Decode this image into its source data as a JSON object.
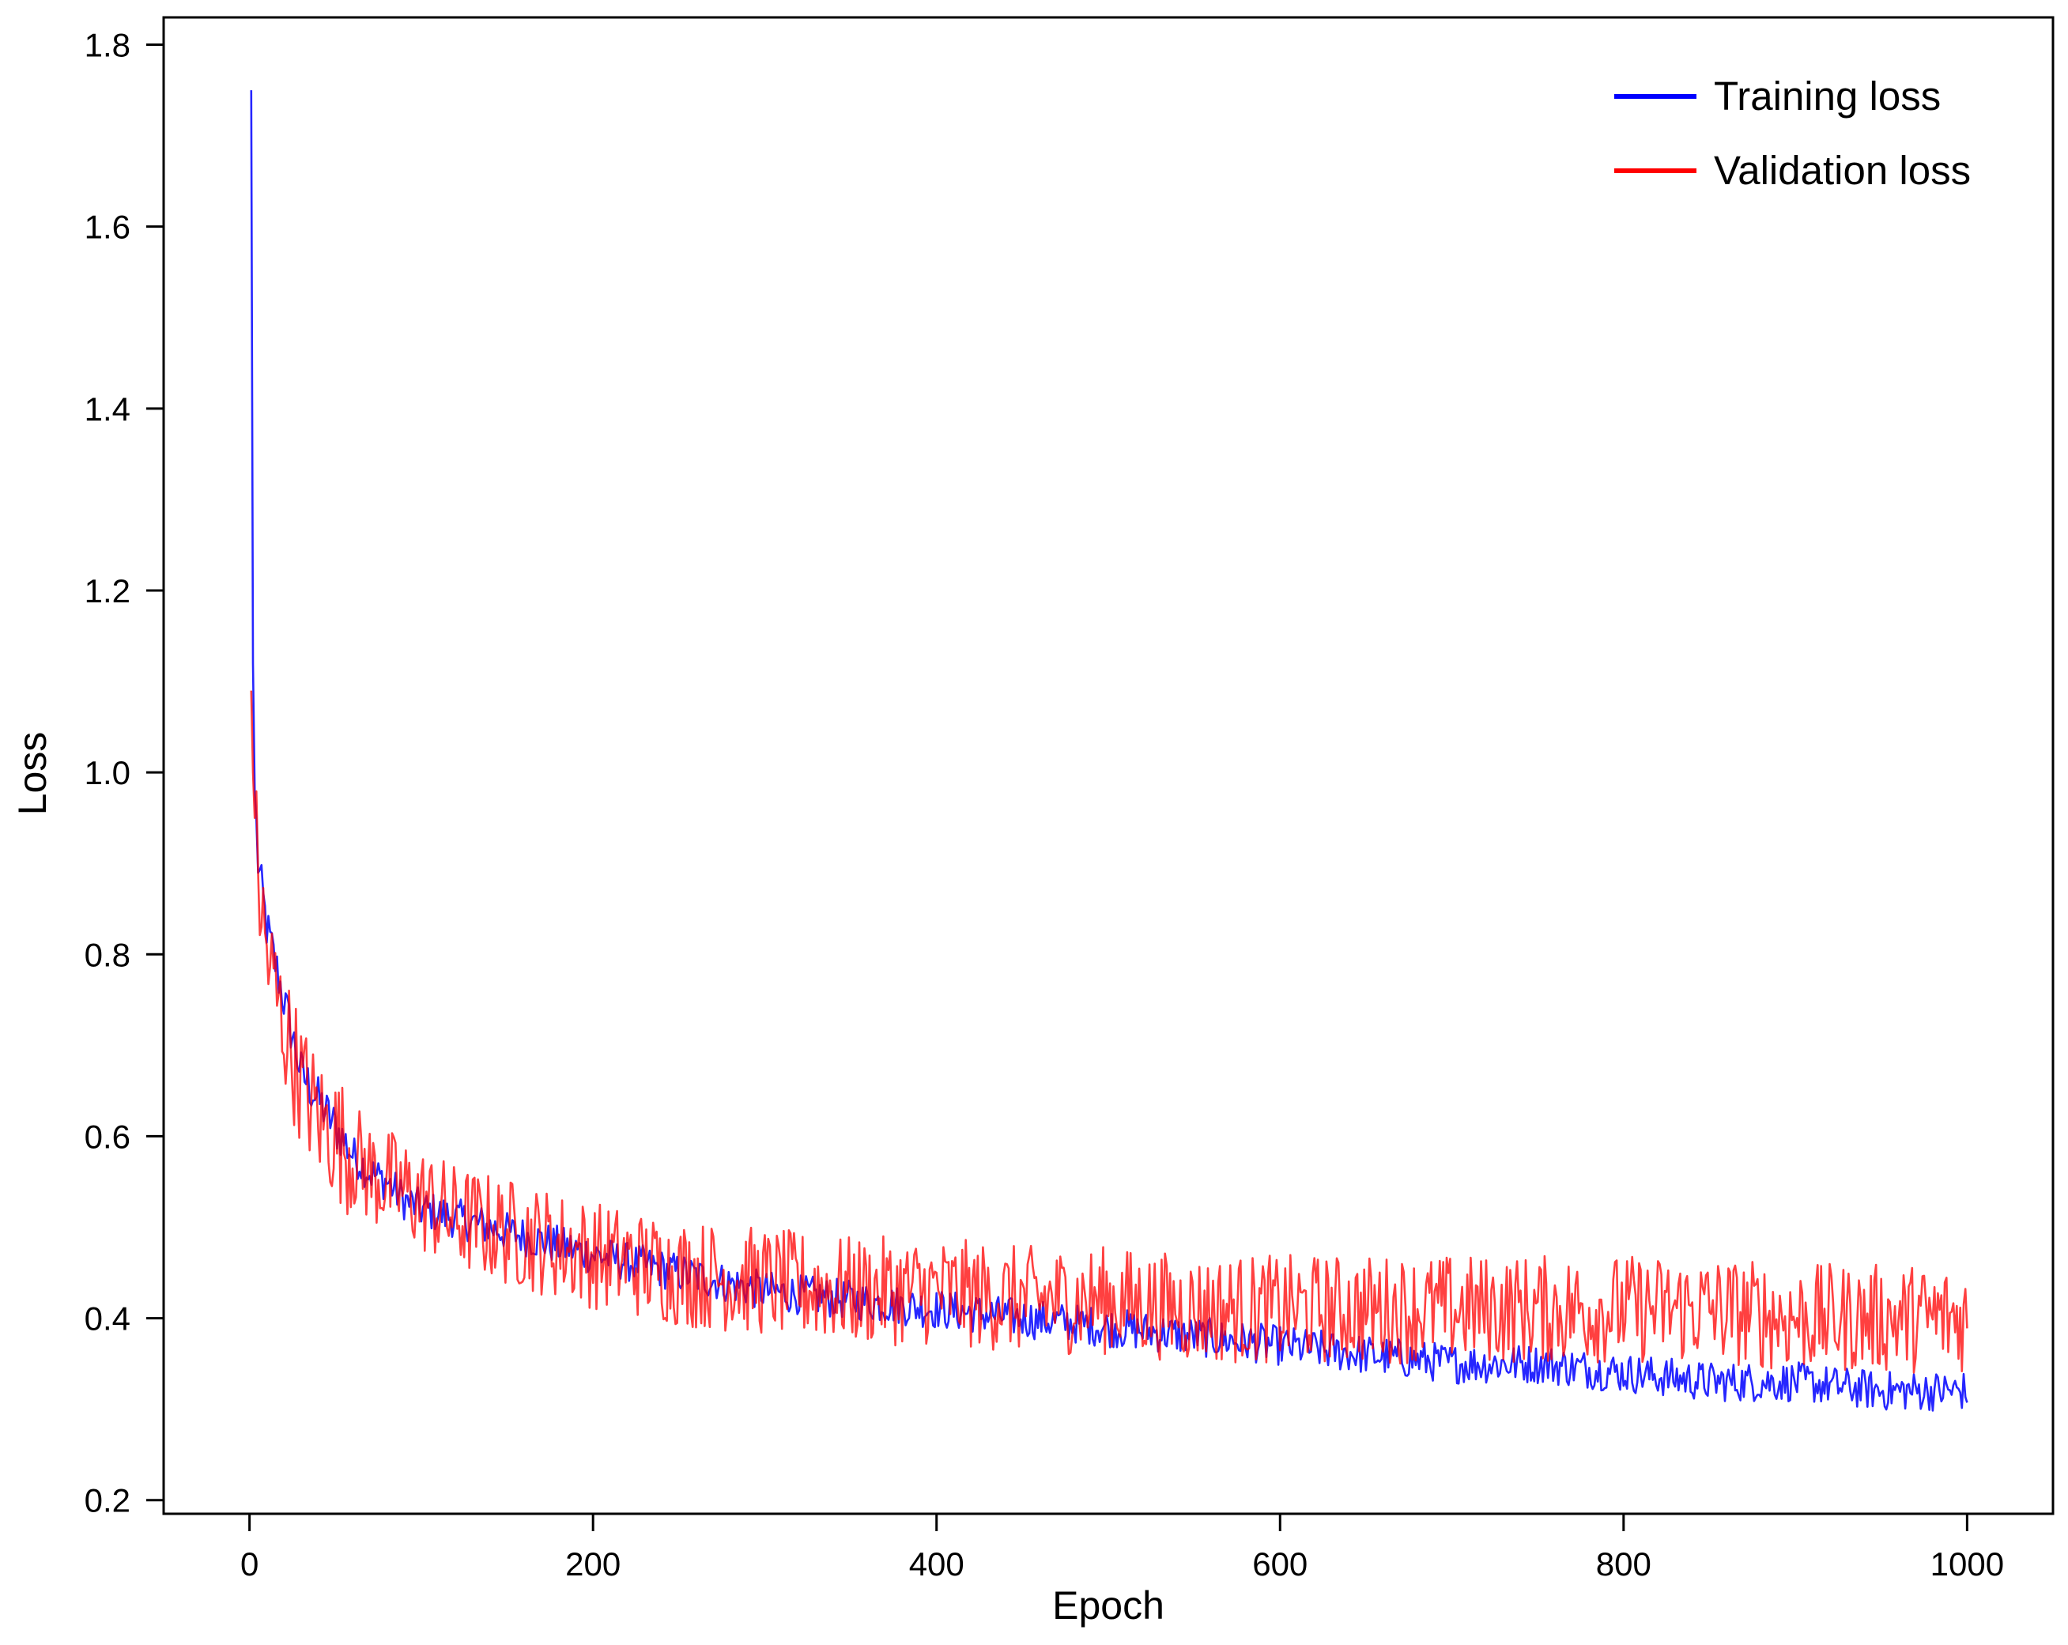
{
  "chart_data": {
    "type": "line",
    "title": "",
    "xlabel": "Epoch",
    "ylabel": "Loss",
    "xlim": [
      -50,
      1050
    ],
    "ylim": [
      0.185,
      1.83
    ],
    "x_ticks": [
      0,
      200,
      400,
      600,
      800,
      1000
    ],
    "x_tick_labels": [
      "0",
      "200",
      "400",
      "600",
      "800",
      "1000"
    ],
    "y_ticks": [
      0.2,
      0.4,
      0.6,
      0.8,
      1.0,
      1.2,
      1.4,
      1.6,
      1.8
    ],
    "y_tick_labels": [
      "0.2",
      "0.4",
      "0.6",
      "0.8",
      "1.0",
      "1.2",
      "1.4",
      "1.6",
      "1.8"
    ],
    "grid": false,
    "legend_position": "top-right",
    "series": [
      {
        "name": "Training loss",
        "color": "#0000ff",
        "x": [
          1,
          2,
          3,
          5,
          10,
          20,
          30,
          40,
          50,
          60,
          70,
          80,
          90,
          100,
          120,
          140,
          160,
          180,
          200,
          250,
          300,
          350,
          400,
          450,
          500,
          550,
          600,
          650,
          700,
          750,
          800,
          850,
          900,
          950,
          1000
        ],
        "values": [
          1.75,
          1.12,
          0.98,
          0.9,
          0.83,
          0.75,
          0.67,
          0.64,
          0.61,
          0.58,
          0.56,
          0.55,
          0.53,
          0.52,
          0.51,
          0.5,
          0.49,
          0.48,
          0.47,
          0.45,
          0.43,
          0.42,
          0.41,
          0.4,
          0.39,
          0.38,
          0.37,
          0.36,
          0.35,
          0.35,
          0.34,
          0.33,
          0.33,
          0.32,
          0.32
        ]
      },
      {
        "name": "Validation loss",
        "color": "#ff0000",
        "x": [
          1,
          2,
          3,
          5,
          10,
          20,
          30,
          40,
          50,
          60,
          70,
          80,
          90,
          100,
          120,
          140,
          160,
          180,
          200,
          250,
          300,
          350,
          400,
          450,
          500,
          550,
          600,
          650,
          700,
          750,
          800,
          850,
          900,
          950,
          1000
        ],
        "values": [
          1.09,
          1.0,
          0.95,
          0.88,
          0.8,
          0.72,
          0.66,
          0.62,
          0.6,
          0.58,
          0.56,
          0.55,
          0.54,
          0.53,
          0.51,
          0.5,
          0.49,
          0.48,
          0.47,
          0.45,
          0.44,
          0.43,
          0.43,
          0.42,
          0.42,
          0.41,
          0.41,
          0.41,
          0.41,
          0.41,
          0.41,
          0.41,
          0.4,
          0.4,
          0.4
        ]
      }
    ]
  }
}
